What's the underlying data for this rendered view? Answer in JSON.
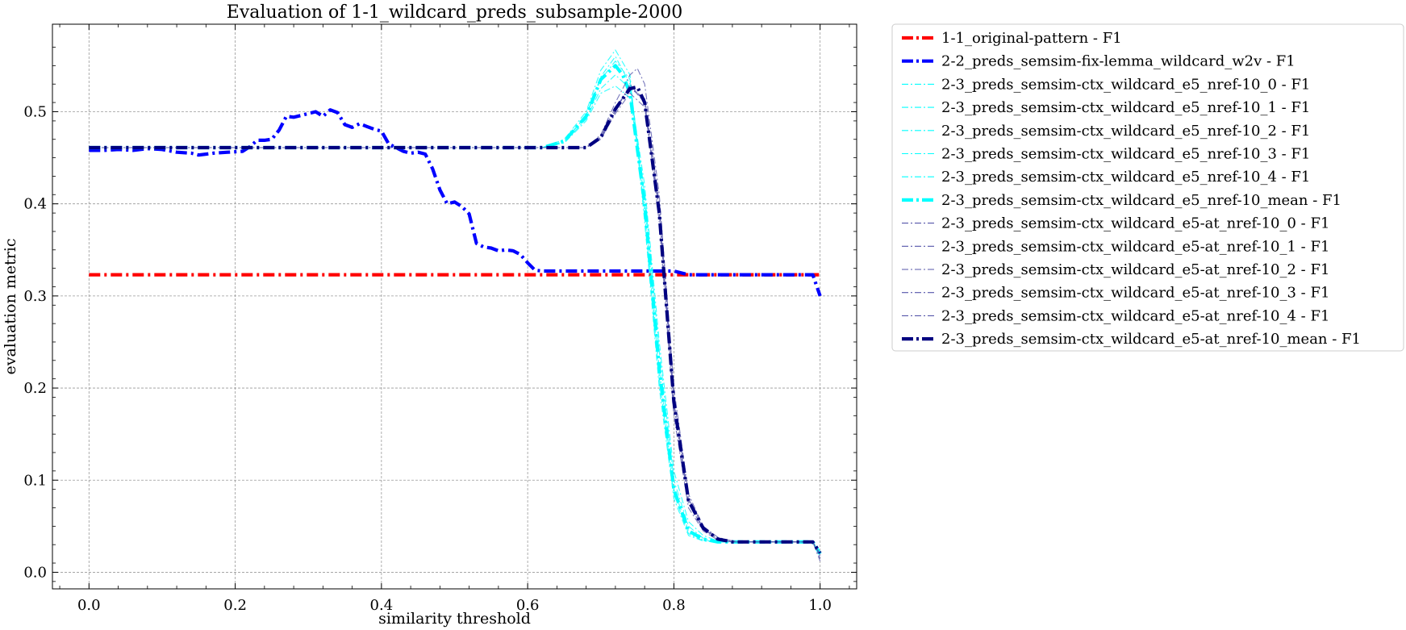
{
  "chart_data": {
    "type": "line",
    "title": "Evaluation of 1-1_wildcard_preds_subsample-2000",
    "xlabel": "similarity threshold",
    "ylabel": "evaluation metric",
    "xlim": [
      -0.05,
      1.05
    ],
    "ylim": [
      -0.018,
      0.595
    ],
    "xticks": [
      0.0,
      0.2,
      0.4,
      0.6,
      0.8,
      1.0
    ],
    "xtick_labels": [
      "0.0",
      "0.2",
      "0.4",
      "0.6",
      "0.8",
      "1.0"
    ],
    "yticks": [
      0.0,
      0.1,
      0.2,
      0.3,
      0.4,
      0.5
    ],
    "ytick_labels": [
      "0.0",
      "0.1",
      "0.2",
      "0.3",
      "0.4",
      "0.5"
    ],
    "grid": true,
    "legend_position": "outside-right",
    "series": [
      {
        "name": "1-1_original-pattern - F1",
        "color": "#ff0000",
        "width": "thick",
        "x": [
          0.0,
          1.0
        ],
        "y": [
          0.323,
          0.323
        ]
      },
      {
        "name": "2-2_preds_semsim-fix-lemma_wildcard_w2v - F1",
        "color": "#0000ff",
        "width": "thick",
        "x": [
          0.0,
          0.02,
          0.04,
          0.06,
          0.08,
          0.1,
          0.12,
          0.14,
          0.15,
          0.17,
          0.19,
          0.21,
          0.22,
          0.23,
          0.24,
          0.25,
          0.26,
          0.27,
          0.28,
          0.29,
          0.3,
          0.31,
          0.32,
          0.33,
          0.34,
          0.35,
          0.36,
          0.37,
          0.38,
          0.39,
          0.4,
          0.41,
          0.42,
          0.43,
          0.44,
          0.45,
          0.46,
          0.47,
          0.48,
          0.49,
          0.5,
          0.51,
          0.52,
          0.53,
          0.54,
          0.55,
          0.56,
          0.57,
          0.58,
          0.59,
          0.6,
          0.61,
          0.62,
          0.64,
          0.66,
          0.68,
          0.7,
          0.74,
          0.8,
          0.82,
          0.9,
          0.99,
          1.0
        ],
        "y": [
          0.458,
          0.458,
          0.459,
          0.458,
          0.46,
          0.459,
          0.456,
          0.455,
          0.453,
          0.455,
          0.456,
          0.457,
          0.462,
          0.469,
          0.469,
          0.47,
          0.48,
          0.495,
          0.494,
          0.496,
          0.498,
          0.5,
          0.495,
          0.502,
          0.499,
          0.486,
          0.483,
          0.487,
          0.484,
          0.481,
          0.479,
          0.465,
          0.461,
          0.457,
          0.455,
          0.456,
          0.454,
          0.438,
          0.415,
          0.4,
          0.402,
          0.397,
          0.389,
          0.357,
          0.353,
          0.352,
          0.349,
          0.35,
          0.349,
          0.345,
          0.336,
          0.328,
          0.327,
          0.327,
          0.327,
          0.327,
          0.327,
          0.327,
          0.327,
          0.323,
          0.323,
          0.323,
          0.3
        ]
      },
      {
        "name": "2-3_preds_semsim-ctx_wildcard_e5_nref-10_0 - F1",
        "color": "#00ffff",
        "width": "thin",
        "x": [
          0.0,
          0.62,
          0.65,
          0.68,
          0.7,
          0.72,
          0.74,
          0.76,
          0.78,
          0.8,
          0.82,
          0.84,
          0.86,
          0.88,
          0.9,
          0.95,
          0.99,
          1.0
        ],
        "y": [
          0.461,
          0.461,
          0.466,
          0.49,
          0.52,
          0.528,
          0.515,
          0.41,
          0.24,
          0.1,
          0.05,
          0.037,
          0.033,
          0.033,
          0.033,
          0.033,
          0.033,
          0.02
        ]
      },
      {
        "name": "2-3_preds_semsim-ctx_wildcard_e5_nref-10_1 - F1",
        "color": "#00ffff",
        "width": "thin",
        "x": [
          0.0,
          0.62,
          0.65,
          0.68,
          0.7,
          0.72,
          0.74,
          0.76,
          0.78,
          0.8,
          0.82,
          0.84,
          0.86,
          0.88,
          0.9,
          0.95,
          0.99,
          1.0
        ],
        "y": [
          0.461,
          0.461,
          0.47,
          0.5,
          0.545,
          0.567,
          0.54,
          0.38,
          0.2,
          0.08,
          0.04,
          0.034,
          0.033,
          0.033,
          0.033,
          0.033,
          0.033,
          0.02
        ]
      },
      {
        "name": "2-3_preds_semsim-ctx_wildcard_e5_nref-10_2 - F1",
        "color": "#00ffff",
        "width": "thin",
        "x": [
          0.0,
          0.62,
          0.65,
          0.68,
          0.7,
          0.72,
          0.74,
          0.76,
          0.78,
          0.8,
          0.82,
          0.84,
          0.86,
          0.88,
          0.9,
          0.95,
          0.99,
          1.0
        ],
        "y": [
          0.461,
          0.461,
          0.468,
          0.495,
          0.535,
          0.555,
          0.535,
          0.4,
          0.22,
          0.09,
          0.045,
          0.035,
          0.033,
          0.033,
          0.033,
          0.033,
          0.033,
          0.02
        ]
      },
      {
        "name": "2-3_preds_semsim-ctx_wildcard_e5_nref-10_3 - F1",
        "color": "#00ffff",
        "width": "thin",
        "x": [
          0.0,
          0.62,
          0.65,
          0.68,
          0.7,
          0.72,
          0.74,
          0.76,
          0.78,
          0.8,
          0.82,
          0.84,
          0.86,
          0.88,
          0.9,
          0.95,
          0.99,
          1.0
        ],
        "y": [
          0.461,
          0.461,
          0.467,
          0.492,
          0.525,
          0.54,
          0.525,
          0.42,
          0.25,
          0.11,
          0.055,
          0.04,
          0.034,
          0.033,
          0.033,
          0.033,
          0.033,
          0.02
        ]
      },
      {
        "name": "2-3_preds_semsim-ctx_wildcard_e5_nref-10_4 - F1",
        "color": "#00ffff",
        "width": "thin",
        "x": [
          0.0,
          0.62,
          0.65,
          0.68,
          0.7,
          0.72,
          0.74,
          0.76,
          0.78,
          0.8,
          0.82,
          0.84,
          0.86,
          0.88,
          0.9,
          0.95,
          0.99,
          1.0
        ],
        "y": [
          0.461,
          0.461,
          0.468,
          0.496,
          0.538,
          0.56,
          0.53,
          0.39,
          0.21,
          0.085,
          0.042,
          0.034,
          0.033,
          0.033,
          0.033,
          0.033,
          0.033,
          0.02
        ]
      },
      {
        "name": "2-3_preds_semsim-ctx_wildcard_e5_nref-10_mean - F1",
        "color": "#00ffff",
        "width": "thick",
        "x": [
          0.0,
          0.62,
          0.65,
          0.68,
          0.7,
          0.72,
          0.73,
          0.74,
          0.76,
          0.78,
          0.8,
          0.82,
          0.84,
          0.86,
          0.88,
          0.9,
          0.95,
          0.99,
          1.0
        ],
        "y": [
          0.461,
          0.461,
          0.468,
          0.495,
          0.535,
          0.55,
          0.54,
          0.52,
          0.4,
          0.22,
          0.09,
          0.045,
          0.036,
          0.033,
          0.033,
          0.033,
          0.033,
          0.033,
          0.02
        ]
      },
      {
        "name": "2-3_preds_semsim-ctx_wildcard_e5-at_nref-10_0 - F1",
        "color": "#5555aa",
        "width": "thin",
        "x": [
          0.0,
          0.68,
          0.7,
          0.72,
          0.74,
          0.76,
          0.78,
          0.8,
          0.82,
          0.84,
          0.86,
          0.88,
          0.9,
          0.95,
          0.99,
          1.0
        ],
        "y": [
          0.461,
          0.461,
          0.472,
          0.5,
          0.53,
          0.51,
          0.38,
          0.17,
          0.07,
          0.045,
          0.035,
          0.033,
          0.033,
          0.033,
          0.033,
          0.015
        ]
      },
      {
        "name": "2-3_preds_semsim-ctx_wildcard_e5-at_nref-10_1 - F1",
        "color": "#5555aa",
        "width": "thin",
        "x": [
          0.0,
          0.68,
          0.7,
          0.72,
          0.74,
          0.75,
          0.76,
          0.78,
          0.8,
          0.82,
          0.84,
          0.86,
          0.88,
          0.9,
          0.95,
          0.99,
          1.0
        ],
        "y": [
          0.461,
          0.461,
          0.475,
          0.51,
          0.54,
          0.547,
          0.53,
          0.41,
          0.2,
          0.085,
          0.05,
          0.038,
          0.034,
          0.033,
          0.033,
          0.033,
          0.012
        ]
      },
      {
        "name": "2-3_preds_semsim-ctx_wildcard_e5-at_nref-10_2 - F1",
        "color": "#5555aa",
        "width": "thin",
        "x": [
          0.0,
          0.68,
          0.7,
          0.72,
          0.74,
          0.76,
          0.78,
          0.8,
          0.82,
          0.84,
          0.86,
          0.88,
          0.9,
          0.95,
          0.99,
          1.0
        ],
        "y": [
          0.461,
          0.461,
          0.473,
          0.505,
          0.525,
          0.515,
          0.4,
          0.19,
          0.08,
          0.05,
          0.036,
          0.033,
          0.033,
          0.033,
          0.033,
          0.02
        ]
      },
      {
        "name": "2-3_preds_semsim-ctx_wildcard_e5-at_nref-10_3 - F1",
        "color": "#5555aa",
        "width": "thin",
        "x": [
          0.0,
          0.68,
          0.7,
          0.72,
          0.74,
          0.76,
          0.78,
          0.8,
          0.82,
          0.84,
          0.86,
          0.88,
          0.9,
          0.95,
          0.99,
          1.0
        ],
        "y": [
          0.461,
          0.461,
          0.47,
          0.498,
          0.52,
          0.505,
          0.39,
          0.18,
          0.075,
          0.047,
          0.036,
          0.033,
          0.033,
          0.033,
          0.033,
          0.018
        ]
      },
      {
        "name": "2-3_preds_semsim-ctx_wildcard_e5-at_nref-10_4 - F1",
        "color": "#5555aa",
        "width": "thin",
        "x": [
          0.0,
          0.68,
          0.7,
          0.72,
          0.74,
          0.76,
          0.78,
          0.8,
          0.82,
          0.84,
          0.86,
          0.88,
          0.9,
          0.95,
          0.99,
          1.0
        ],
        "y": [
          0.461,
          0.461,
          0.471,
          0.502,
          0.528,
          0.51,
          0.395,
          0.185,
          0.078,
          0.048,
          0.036,
          0.033,
          0.033,
          0.033,
          0.033,
          0.02
        ]
      },
      {
        "name": "2-3_preds_semsim-ctx_wildcard_e5-at_nref-10_mean - F1",
        "color": "#000080",
        "width": "thick",
        "x": [
          0.0,
          0.68,
          0.7,
          0.72,
          0.74,
          0.75,
          0.76,
          0.78,
          0.8,
          0.82,
          0.84,
          0.86,
          0.88,
          0.9,
          0.95,
          0.99,
          1.0
        ],
        "y": [
          0.461,
          0.461,
          0.472,
          0.503,
          0.525,
          0.527,
          0.51,
          0.39,
          0.185,
          0.078,
          0.048,
          0.036,
          0.033,
          0.033,
          0.033,
          0.033,
          0.021
        ]
      }
    ]
  }
}
